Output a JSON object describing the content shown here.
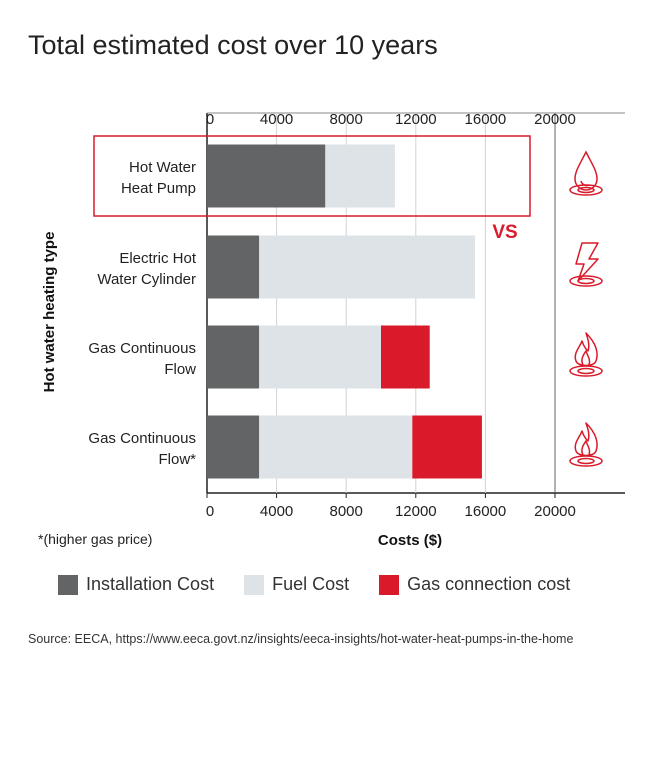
{
  "title": "Total estimated cost over 10 years",
  "footnote": "*(higher gas price)",
  "source": "Source: EECA, https://www.eeca.govt.nz/insights/eeca-insights/hot-water-heat-pumps-in-the-home",
  "highlight_label": "VS",
  "colors": {
    "installation": "#636466",
    "fuel": "#dde3e6",
    "gas_connection": "#d91a2a",
    "accent": "#d91a2a",
    "axis": "#222222"
  },
  "chart_data": {
    "type": "bar",
    "orientation": "horizontal",
    "stacked": true,
    "xlabel": "Costs ($)",
    "ylabel": "Hot water heating type",
    "xlim": [
      0,
      20000
    ],
    "xticks": [
      0,
      4000,
      8000,
      12000,
      16000,
      20000
    ],
    "categories": [
      {
        "lines": [
          "Hot Water",
          "Heat Pump"
        ],
        "icon": "water-drop-icon",
        "highlighted": true
      },
      {
        "lines": [
          "Electric Hot",
          "Water Cylinder"
        ],
        "icon": "lightning-icon",
        "highlighted": false
      },
      {
        "lines": [
          "Gas Continuous",
          "Flow"
        ],
        "icon": "flame-icon",
        "highlighted": false
      },
      {
        "lines": [
          "Gas Continuous",
          "Flow*"
        ],
        "icon": "flame-icon",
        "highlighted": false
      }
    ],
    "series": [
      {
        "name": "Installation Cost",
        "key": "installation",
        "values": [
          6800,
          3000,
          3000,
          3000
        ]
      },
      {
        "name": "Fuel Cost",
        "key": "fuel",
        "values": [
          4000,
          12400,
          7000,
          8800
        ]
      },
      {
        "name": "Gas connection cost",
        "key": "gas_connection",
        "values": [
          0,
          0,
          2800,
          4000
        ]
      }
    ],
    "legend": [
      {
        "label": "Installation Cost",
        "key": "installation"
      },
      {
        "label": "Fuel Cost",
        "key": "fuel"
      },
      {
        "label": "Gas connection cost",
        "key": "gas_connection"
      }
    ],
    "legend_position": "bottom"
  }
}
